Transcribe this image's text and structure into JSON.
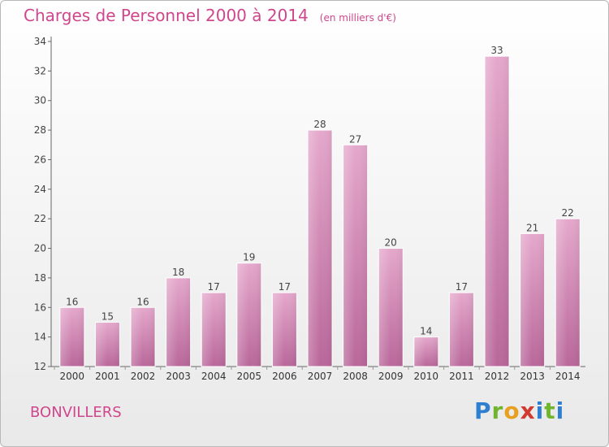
{
  "title": "Charges de Personnel 2000 à 2014",
  "subtitle": "(en milliers d'€)",
  "commune": "BONVILLERS",
  "logo": [
    "P",
    "r",
    "o",
    "x",
    "i",
    "t",
    "i"
  ],
  "colors": {
    "bar": "#d890bb",
    "title": "#d0468c"
  },
  "chart_data": {
    "type": "bar",
    "title": "Charges de Personnel 2000 à 2014",
    "subtitle": "(en milliers d'€)",
    "categories": [
      "2000",
      "2001",
      "2002",
      "2003",
      "2004",
      "2005",
      "2006",
      "2007",
      "2008",
      "2009",
      "2010",
      "2011",
      "2012",
      "2013",
      "2014"
    ],
    "values": [
      16,
      15,
      16,
      18,
      17,
      19,
      17,
      28,
      27,
      20,
      14,
      17,
      33,
      21,
      22
    ],
    "ylim": [
      12,
      34
    ],
    "yticks": [
      12,
      14,
      16,
      18,
      20,
      22,
      24,
      26,
      28,
      30,
      32,
      34
    ],
    "grid": false,
    "data_labels": true
  }
}
